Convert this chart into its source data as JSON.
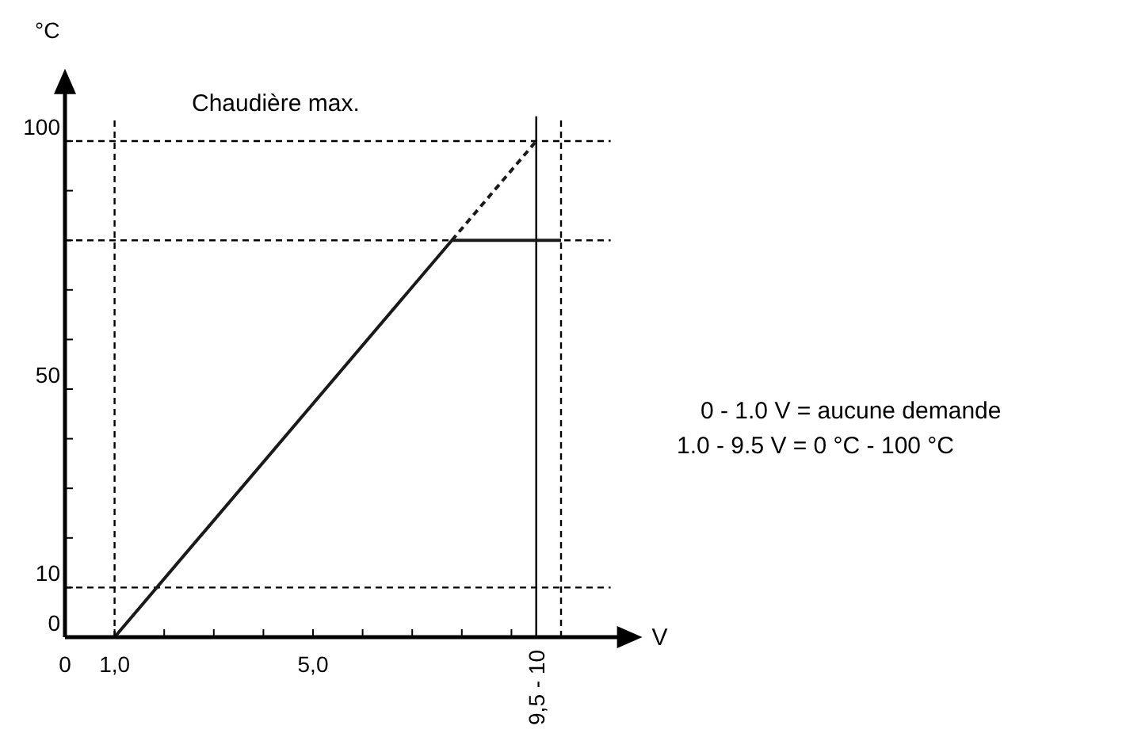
{
  "chart_data": {
    "type": "line",
    "title": "Chaudière max.",
    "xlabel": "V",
    "ylabel": "°C",
    "xlim": [
      0,
      11
    ],
    "ylim": [
      0,
      105
    ],
    "xticks": [
      0,
      {
        "value": 1,
        "label": "1,0"
      },
      {
        "value": 2,
        "label": null
      },
      {
        "value": 3,
        "label": null
      },
      {
        "value": 4,
        "label": null
      },
      {
        "value": 5,
        "label": "5,0"
      },
      {
        "value": 6,
        "label": null
      },
      {
        "value": 7,
        "label": null
      },
      {
        "value": 8,
        "label": null
      },
      {
        "value": 9,
        "label": null
      }
    ],
    "yticks": [
      0,
      10,
      {
        "value": 20,
        "label": null
      },
      {
        "value": 30,
        "label": null
      },
      {
        "value": 40,
        "label": null
      },
      50,
      {
        "value": 60,
        "label": null
      },
      {
        "value": 70,
        "label": null
      },
      {
        "value": 80,
        "label": null
      },
      {
        "value": 90,
        "label": null
      },
      100
    ],
    "series": [
      {
        "color": "#1a1a1a",
        "x": [
          1,
          7.8,
          10
        ],
        "values": [
          0,
          80,
          80
        ],
        "line_style": "solid"
      },
      {
        "color": "#1a1a1a",
        "x": [
          7.8,
          9.5
        ],
        "values": [
          80,
          100
        ],
        "line_style": "dashed"
      }
    ],
    "ref_lines": [
      {
        "axis": "y",
        "value": 100,
        "line_style": "dashed"
      },
      {
        "axis": "y",
        "value": 80,
        "line_style": "dashed"
      },
      {
        "axis": "y",
        "value": 10,
        "line_style": "dashed"
      },
      {
        "axis": "x",
        "value": 1,
        "line_style": "dashed"
      },
      {
        "axis": "x",
        "value": 9.5,
        "line_style": "solid",
        "label": "9,5 - 10"
      },
      {
        "axis": "x",
        "value": 10,
        "line_style": "dashed"
      }
    ],
    "annotations": [
      "0 - 1.0 V = aucune demande",
      "1.0 - 9.5 V = 0 °C - 100 °C"
    ],
    "grid": false
  }
}
